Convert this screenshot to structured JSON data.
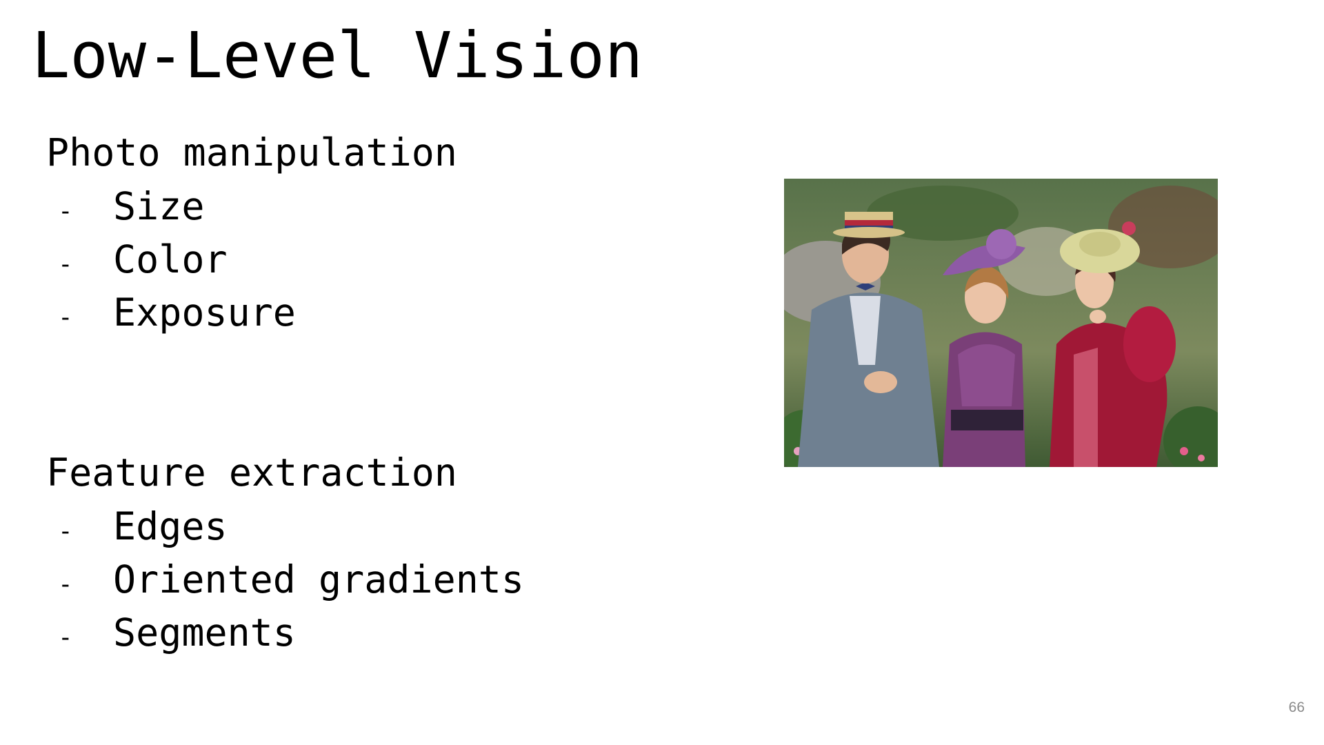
{
  "slide": {
    "title": "Low-Level Vision",
    "sections": [
      {
        "heading": "Photo manipulation",
        "items": [
          "Size",
          "Color",
          "Exposure"
        ]
      },
      {
        "heading": "Feature extraction",
        "items": [
          "Edges",
          "Oriented gradients",
          "Segments"
        ]
      }
    ],
    "bullet": "-",
    "page_number": "66"
  },
  "photo": {
    "subject": "three people in Victorian-era costumes posing in a garden",
    "colors": {
      "foliage": "#4a6b3b",
      "suit": "#6f8091",
      "purple_dress": "#7a3f78",
      "red_coat": "#a01836"
    }
  }
}
